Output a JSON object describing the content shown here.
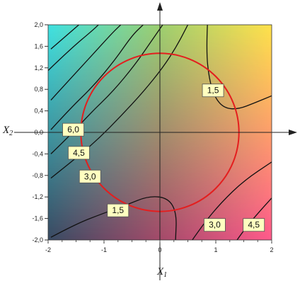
{
  "chart_data": {
    "type": "heatmap",
    "subtype": "contour",
    "xlabel": "X",
    "xlabel_sub": "1",
    "ylabel": "X",
    "ylabel_sub": "2",
    "xlim": [
      -2,
      2
    ],
    "ylim": [
      -2,
      2
    ],
    "x_ticks": [
      "-2",
      "-1",
      "0",
      "1",
      "2"
    ],
    "y_ticks": [
      "-2,0",
      "-1,6",
      "-1,2",
      "-0,8",
      "-0,4",
      "0,0",
      "0,4",
      "0,8",
      "1,2",
      "1,6",
      "2,0"
    ],
    "colormap": {
      "top_left": "#3fe2e2",
      "top_right": "#ffe24a",
      "bottom_left": "#384a62",
      "bottom_right": "#ff5a8c"
    },
    "circle": {
      "center": [
        0,
        0
      ],
      "radius": 1.414,
      "color": "#e41e1e"
    },
    "contour_labels": [
      {
        "text": "1,5",
        "x": 0.95,
        "y": 0.78
      },
      {
        "text": "6,0",
        "x": -1.55,
        "y": 0.05
      },
      {
        "text": "4,5",
        "x": -1.45,
        "y": -0.38
      },
      {
        "text": "3,0",
        "x": -1.25,
        "y": -0.82
      },
      {
        "text": "1,5",
        "x": -0.75,
        "y": -1.45
      },
      {
        "text": "3,0",
        "x": 0.98,
        "y": -1.72
      },
      {
        "text": "4,5",
        "x": 1.68,
        "y": -1.72
      }
    ],
    "contour_lines": [
      [
        [
          -1.95,
          1.55
        ],
        [
          -1.65,
          1.82
        ],
        [
          -1.45,
          2.0
        ]
      ],
      [
        [
          -2.0,
          1.15
        ],
        [
          -1.6,
          1.55
        ],
        [
          -1.2,
          1.9
        ],
        [
          -1.1,
          2.0
        ]
      ],
      [
        [
          -1.95,
          0.6
        ],
        [
          -1.6,
          1.0
        ],
        [
          -1.2,
          1.45
        ],
        [
          -0.85,
          1.85
        ],
        [
          -0.7,
          2.0
        ]
      ],
      [
        [
          -1.95,
          0.05
        ],
        [
          -1.6,
          0.45
        ],
        [
          -1.2,
          0.85
        ],
        [
          -0.8,
          1.35
        ],
        [
          -0.5,
          1.8
        ],
        [
          -0.3,
          2.0
        ]
      ],
      [
        [
          -1.95,
          -0.4
        ],
        [
          -1.6,
          -0.05
        ],
        [
          -1.25,
          0.35
        ],
        [
          -0.85,
          0.75
        ],
        [
          -0.45,
          1.25
        ],
        [
          -0.15,
          1.7
        ],
        [
          0.05,
          2.0
        ]
      ],
      [
        [
          -1.95,
          -0.85
        ],
        [
          -1.5,
          -0.48
        ],
        [
          -1.1,
          -0.12
        ],
        [
          -0.7,
          0.3
        ],
        [
          -0.3,
          0.75
        ],
        [
          0.05,
          1.2
        ],
        [
          0.3,
          1.6
        ],
        [
          0.5,
          2.0
        ]
      ],
      [
        [
          0.85,
          2.0
        ],
        [
          0.83,
          1.5
        ],
        [
          0.88,
          1.0
        ],
        [
          0.98,
          0.65
        ],
        [
          1.15,
          0.45
        ],
        [
          1.4,
          0.43
        ],
        [
          1.7,
          0.55
        ],
        [
          2.0,
          0.68
        ]
      ],
      [
        [
          -1.95,
          -1.95
        ],
        [
          -1.5,
          -1.7
        ],
        [
          -1.0,
          -1.5
        ],
        [
          -0.6,
          -1.35
        ],
        [
          -0.2,
          -1.18
        ],
        [
          0.15,
          -1.22
        ],
        [
          0.3,
          -1.5
        ],
        [
          0.28,
          -2.0
        ]
      ],
      [
        [
          0.58,
          -2.0
        ],
        [
          0.78,
          -1.7
        ],
        [
          1.1,
          -1.3
        ],
        [
          1.5,
          -0.9
        ],
        [
          2.0,
          -0.55
        ]
      ],
      [
        [
          1.38,
          -2.0
        ],
        [
          1.55,
          -1.75
        ],
        [
          1.8,
          -1.45
        ],
        [
          2.0,
          -1.22
        ]
      ]
    ]
  }
}
